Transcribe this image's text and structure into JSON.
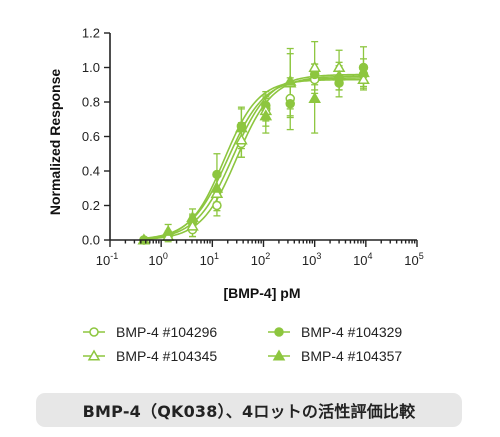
{
  "chart_data": {
    "type": "scatter",
    "xlabel": "[BMP-4] pM",
    "ylabel": "Normalized Response",
    "xscale": "log",
    "xlim_exponents": [
      -1,
      5
    ],
    "ylim": [
      0.0,
      1.2
    ],
    "yticks": [
      0.0,
      0.2,
      0.4,
      0.6,
      0.8,
      1.0,
      1.2
    ],
    "yticklabels": [
      "0.0",
      "0.2",
      "0.4",
      "0.6",
      "0.8",
      "1.0",
      "1.2"
    ],
    "xticks": [
      0.1,
      1,
      10,
      100,
      1000,
      10000,
      100000
    ],
    "xticklabels": [
      {
        "base": "10",
        "exp": "-1"
      },
      {
        "base": "10",
        "exp": "0"
      },
      {
        "base": "10",
        "exp": "1"
      },
      {
        "base": "10",
        "exp": "2"
      },
      {
        "base": "10",
        "exp": "3"
      },
      {
        "base": "10",
        "exp": "4"
      },
      {
        "base": "10",
        "exp": "5"
      }
    ],
    "x": [
      0.46,
      1.37,
      4.1,
      12.3,
      37,
      111,
      333,
      1000,
      3000,
      9000
    ],
    "series": [
      {
        "name": "BMP-4 #104296",
        "marker": "open-circle",
        "y": [
          0.0,
          0.02,
          0.06,
          0.2,
          0.56,
          0.76,
          0.82,
          0.93,
          0.94,
          0.96
        ],
        "err": [
          0.01,
          0.02,
          0.04,
          0.06,
          0.08,
          0.07,
          0.1,
          0.06,
          0.07,
          0.05
        ],
        "fit": {
          "bottom": 0.0,
          "top": 0.95,
          "ec50": 30,
          "hill": 1.25
        }
      },
      {
        "name": "BMP-4 #104329",
        "marker": "filled-circle",
        "y": [
          0.0,
          0.03,
          0.1,
          0.38,
          0.66,
          0.78,
          0.79,
          0.96,
          0.91,
          1.0
        ],
        "err": [
          0.01,
          0.02,
          0.05,
          0.12,
          0.1,
          0.08,
          0.15,
          0.06,
          0.08,
          0.12
        ],
        "fit": {
          "bottom": 0.0,
          "top": 0.93,
          "ec50": 17,
          "hill": 1.3
        }
      },
      {
        "name": "BMP-4 #104345",
        "marker": "open-triangle",
        "y": [
          0.0,
          0.02,
          0.08,
          0.27,
          0.58,
          0.75,
          0.91,
          1.0,
          1.0,
          0.93
        ],
        "err": [
          0.01,
          0.03,
          0.06,
          0.1,
          0.1,
          0.09,
          0.2,
          0.15,
          0.1,
          0.06
        ],
        "fit": {
          "bottom": 0.0,
          "top": 0.96,
          "ec50": 25,
          "hill": 1.2
        }
      },
      {
        "name": "BMP-4 #104357",
        "marker": "filled-triangle",
        "y": [
          0.0,
          0.05,
          0.13,
          0.3,
          0.65,
          0.72,
          0.92,
          0.82,
          0.95,
          0.97
        ],
        "err": [
          0.01,
          0.04,
          0.05,
          0.08,
          0.12,
          0.1,
          0.16,
          0.2,
          0.08,
          0.08
        ],
        "fit": {
          "bottom": 0.0,
          "top": 0.94,
          "ec50": 20,
          "hill": 1.2
        }
      }
    ],
    "legend_position": "bottom",
    "color": "#8dc63f"
  },
  "caption": "BMP-4（QK038）、4ロットの活性評価比較"
}
